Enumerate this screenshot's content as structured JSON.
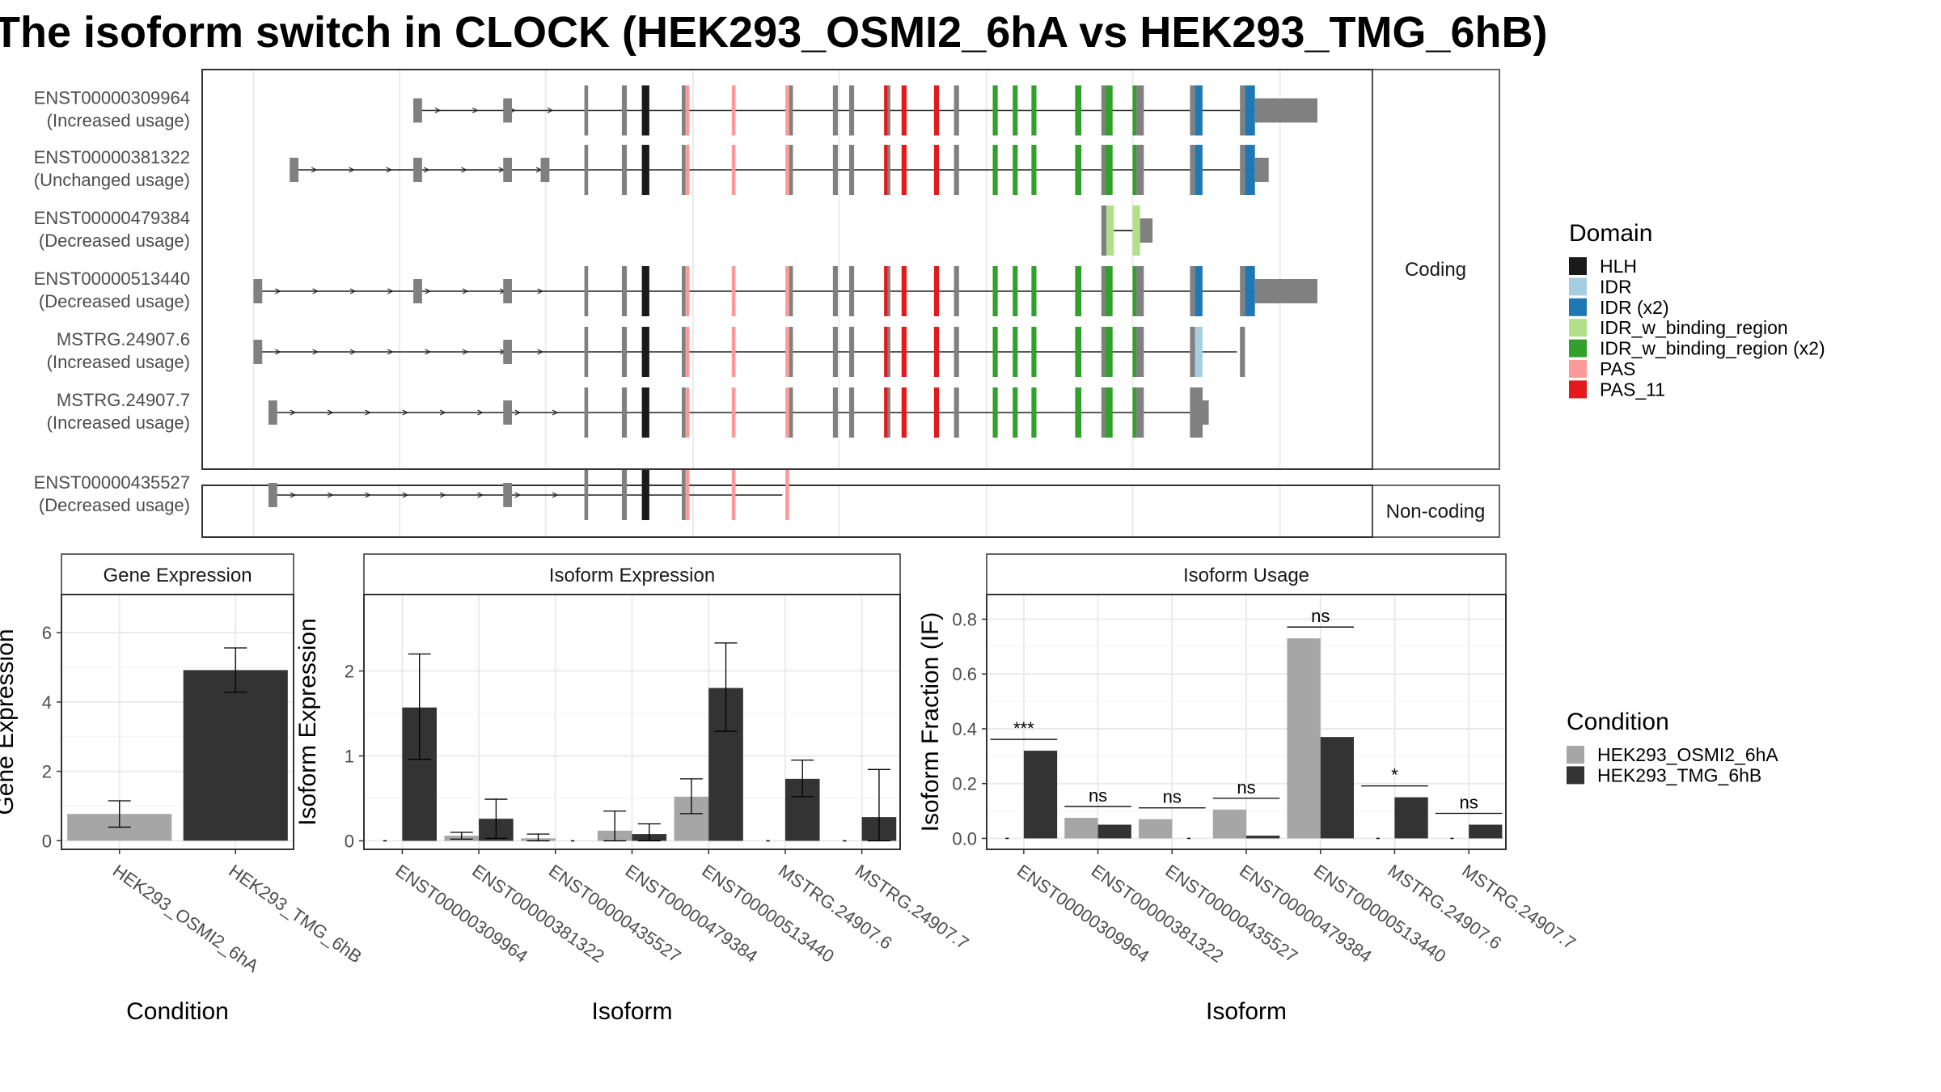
{
  "title": "The isoform switch in CLOCK (HEK293_OSMI2_6hA vs HEK293_TMG_6hB)",
  "colors": {
    "intron": "#222222",
    "unannotated": "#808080",
    "HLH": "#1a1a1a",
    "IDR": "#a6cee3",
    "IDR (x2)": "#1f78b4",
    "IDR_w_binding_region": "#b2df8a",
    "IDR_w_binding_region (x2)": "#33a02c",
    "PAS": "#fb9a99",
    "PAS_11": "#e31a1c",
    "cond1": "#a6a6a6",
    "cond2": "#333333"
  },
  "structure": {
    "strips": [
      "Coding",
      "Non-coding"
    ],
    "transcripts": [
      {
        "id": "ENST00000309964",
        "label": "(Increased usage)",
        "group": "Coding",
        "first": 331,
        "last": 1055,
        "cds_start": 468,
        "cds_end": 1005,
        "pre": [
          331,
          403
        ]
      },
      {
        "id": "ENST00000381322",
        "label": "(Unchanged usage)",
        "group": "Coding",
        "first": 232,
        "last": 1016,
        "cds_start": 468,
        "cds_end": 1005,
        "pre": [
          232,
          331,
          403,
          433
        ]
      },
      {
        "id": "ENST00000479384",
        "label": "(Decreased usage)",
        "group": "Coding",
        "first": 882,
        "last": 923,
        "cds_start": 882,
        "cds_end": 914,
        "pre": []
      },
      {
        "id": "ENST00000513440",
        "label": "(Decreased usage)",
        "group": "Coding",
        "first": 203,
        "last": 1055,
        "cds_start": 468,
        "cds_end": 1005,
        "pre": [
          203,
          331,
          403
        ]
      },
      {
        "id": "MSTRG.24907.6",
        "label": "(Increased usage)",
        "group": "Coding",
        "first": 203,
        "last": 997,
        "cds_start": 468,
        "cds_end": 997,
        "pre": [
          203,
          403
        ]
      },
      {
        "id": "MSTRG.24907.7",
        "label": "(Increased usage)",
        "group": "Coding",
        "first": 215,
        "last": 968,
        "cds_start": 468,
        "cds_end": 963,
        "pre": [
          215,
          403
        ]
      },
      {
        "id": "ENST00000435527",
        "label": "(Decreased usage)",
        "group": "Non-coding",
        "first": 215,
        "last": 633,
        "cds_start": 468,
        "cds_end": 633,
        "pre": [
          215,
          403
        ]
      }
    ]
  },
  "legend_domain": {
    "title": "Domain",
    "items": [
      "HLH",
      "IDR",
      "IDR (x2)",
      "IDR_w_binding_region",
      "IDR_w_binding_region (x2)",
      "PAS",
      "PAS_11"
    ]
  },
  "legend_condition": {
    "title": "Condition",
    "items": [
      "HEK293_OSMI2_6hA",
      "HEK293_TMG_6hB"
    ]
  },
  "chart_data": [
    {
      "type": "bar",
      "title": "Gene Expression",
      "xlabel": "Condition",
      "ylabel": "Gene Expression",
      "ylim": [
        -0.25,
        7.1
      ],
      "yticks": [
        0,
        2,
        4,
        6
      ],
      "categories": [
        "HEK293_OSMI2_6hA",
        "HEK293_TMG_6hB"
      ],
      "values": [
        0.77,
        4.92
      ],
      "errors": [
        [
          0.39,
          1.15
        ],
        [
          4.28,
          5.56
        ]
      ]
    },
    {
      "type": "bar",
      "title": "Isoform Expression",
      "xlabel": "Isoform",
      "ylabel": "Isoform Expression",
      "ylim": [
        -0.1,
        2.9
      ],
      "yticks": [
        0,
        1,
        2
      ],
      "categories": [
        "ENST00000309964",
        "ENST00000381322",
        "ENST00000435527",
        "ENST00000479384",
        "ENST00000513440",
        "MSTRG.24907.6",
        "MSTRG.24907.7"
      ],
      "series": [
        {
          "name": "HEK293_OSMI2_6hA",
          "values": [
            0.0,
            0.06,
            0.03,
            0.12,
            0.52,
            0.0,
            0.0
          ],
          "errors": [
            [
              0,
              0
            ],
            [
              0.02,
              0.1
            ],
            [
              0.0,
              0.08
            ],
            [
              0.0,
              0.35
            ],
            [
              0.32,
              0.73
            ],
            [
              0,
              0
            ],
            [
              0,
              0
            ]
          ]
        },
        {
          "name": "HEK293_TMG_6hB",
          "values": [
            1.57,
            0.26,
            0.0,
            0.08,
            1.8,
            0.73,
            0.28
          ],
          "errors": [
            [
              0.96,
              2.2
            ],
            [
              0.03,
              0.49
            ],
            [
              0,
              0
            ],
            [
              0.0,
              0.2
            ],
            [
              1.29,
              2.33
            ],
            [
              0.52,
              0.95
            ],
            [
              0.0,
              0.84
            ]
          ]
        }
      ]
    },
    {
      "type": "bar",
      "title": "Isoform Usage",
      "xlabel": "Isoform",
      "ylabel": "Isoform Fraction (IF)",
      "ylim": [
        -0.04,
        0.89
      ],
      "yticks": [
        0.0,
        0.2,
        0.4,
        0.6,
        0.8
      ],
      "tick_labels": [
        "0.0",
        "0.2",
        "0.4",
        "0.6",
        "0.8"
      ],
      "categories": [
        "ENST00000309964",
        "ENST00000381322",
        "ENST00000435527",
        "ENST00000479384",
        "ENST00000513440",
        "MSTRG.24907.6",
        "MSTRG.24907.7"
      ],
      "series": [
        {
          "name": "HEK293_OSMI2_6hA",
          "values": [
            0.0,
            0.075,
            0.07,
            0.105,
            0.73,
            0.0,
            0.0
          ]
        },
        {
          "name": "HEK293_TMG_6hB",
          "values": [
            0.32,
            0.05,
            0.0,
            0.01,
            0.37,
            0.15,
            0.05
          ]
        }
      ],
      "significance": [
        "***",
        "ns",
        "ns",
        "ns",
        "ns",
        "*",
        "ns"
      ]
    }
  ]
}
